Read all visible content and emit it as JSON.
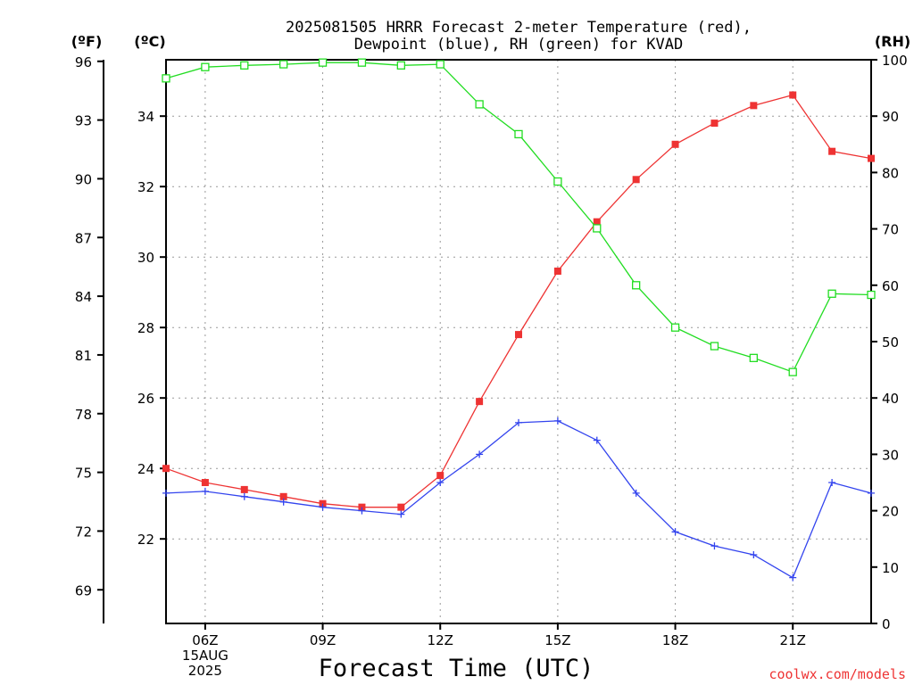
{
  "chart_data": {
    "type": "line",
    "title_lines": [
      "2025081505 HRRR Forecast 2-meter Temperature (red),",
      "Dewpoint (blue), RH (green) for KVAD"
    ],
    "xlabel": "Forecast Time (UTC)",
    "credit": "coolwx.com/models",
    "left_axis_label": "(ºF)",
    "celsius_axis_label": "(ºC)",
    "right_axis_label": "(RH)",
    "x_hours": [
      5,
      6,
      7,
      8,
      9,
      10,
      11,
      12,
      13,
      14,
      15,
      16,
      17,
      18,
      19,
      20,
      21,
      22,
      23
    ],
    "x_range": [
      5,
      23
    ],
    "x_ticks": [
      {
        "hour": 6,
        "lines": [
          "06Z",
          "15AUG",
          "2025"
        ]
      },
      {
        "hour": 9,
        "lines": [
          "09Z"
        ]
      },
      {
        "hour": 12,
        "lines": [
          "12Z"
        ]
      },
      {
        "hour": 15,
        "lines": [
          "15Z"
        ]
      },
      {
        "hour": 18,
        "lines": [
          "18Z"
        ]
      },
      {
        "hour": 21,
        "lines": [
          "21Z"
        ]
      }
    ],
    "celsius_range": [
      19.6,
      35.6
    ],
    "celsius_ticks": [
      "22",
      "24",
      "26",
      "28",
      "30",
      "32",
      "34"
    ],
    "fahrenheit_ticks": [
      "69",
      "72",
      "75",
      "78",
      "81",
      "84",
      "87",
      "90",
      "93",
      "96"
    ],
    "rh_range": [
      0,
      100
    ],
    "rh_ticks": [
      "0",
      "10",
      "20",
      "30",
      "40",
      "50",
      "60",
      "70",
      "80",
      "90",
      "100"
    ],
    "grid": true,
    "series": [
      {
        "id": "temperature",
        "axis": "celsius",
        "color": "#ee3333",
        "marker": "filled-square",
        "values": [
          24.0,
          23.6,
          23.4,
          23.2,
          23.0,
          22.9,
          22.9,
          23.8,
          25.9,
          27.8,
          29.6,
          31.0,
          32.2,
          33.2,
          33.8,
          34.3,
          34.6,
          33.0,
          32.8
        ]
      },
      {
        "id": "dewpoint",
        "axis": "celsius",
        "color": "#3344ee",
        "marker": "plus",
        "values": [
          23.3,
          23.35,
          23.2,
          23.05,
          22.9,
          22.8,
          22.7,
          23.6,
          24.4,
          25.3,
          25.35,
          24.8,
          23.3,
          22.2,
          21.8,
          21.55,
          20.9,
          23.6,
          23.3
        ]
      },
      {
        "id": "rh",
        "axis": "rh",
        "color": "#22dd22",
        "marker": "open-square",
        "values": [
          96.7,
          98.7,
          99.0,
          99.2,
          99.5,
          99.5,
          99.0,
          99.2,
          92.1,
          86.8,
          78.4,
          70.1,
          60.0,
          52.5,
          49.2,
          47.1,
          44.6,
          58.5,
          58.3
        ]
      }
    ]
  }
}
